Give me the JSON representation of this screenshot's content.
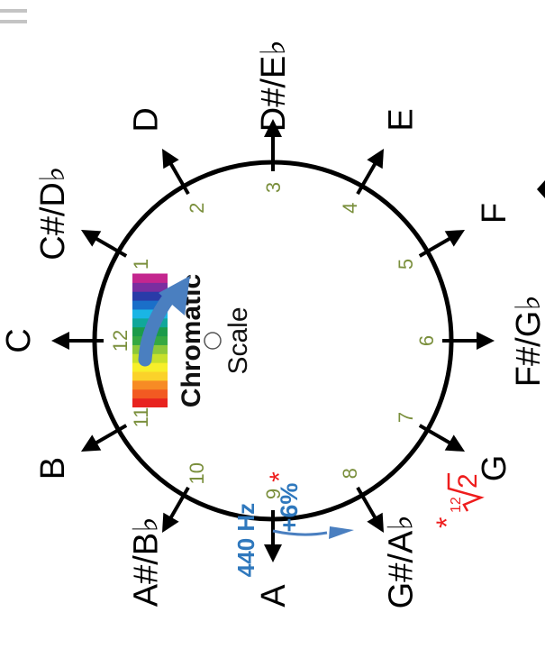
{
  "menu_icon": "hamburger-menu-icon",
  "center": {
    "title": "Chromatic",
    "subtitle": "Scale"
  },
  "notes": [
    "C",
    "C#/D♭",
    "D",
    "D#/E♭",
    "E",
    "F",
    "F#/G♭",
    "G",
    "G#/A♭",
    "A",
    "A#/B♭",
    "B"
  ],
  "numbers": [
    "12",
    "1",
    "2",
    "3",
    "4",
    "5",
    "6",
    "7",
    "8",
    "9",
    "10",
    "11"
  ],
  "reference": {
    "freq": "440 Hz",
    "step": "+6%",
    "step_mark": "*"
  },
  "footnote": {
    "mark": "*",
    "index": "12",
    "radicand": "2"
  },
  "colors": {
    "circle": "#000000",
    "arrow_blue": "#4a7fc0",
    "text_blue": "#2f78bd",
    "number_green": "#7a8f3c",
    "red": "#ee1c1c",
    "spectrum": [
      "#e8231f",
      "#f25a22",
      "#f78b25",
      "#fbd22a",
      "#f7ef2a",
      "#c7e02b",
      "#8cc83a",
      "#35a842",
      "#1b9b4a",
      "#10a79a",
      "#1ab5e5",
      "#1a6fc9",
      "#2a3ba8",
      "#7a2ea0",
      "#c4268f"
    ]
  }
}
